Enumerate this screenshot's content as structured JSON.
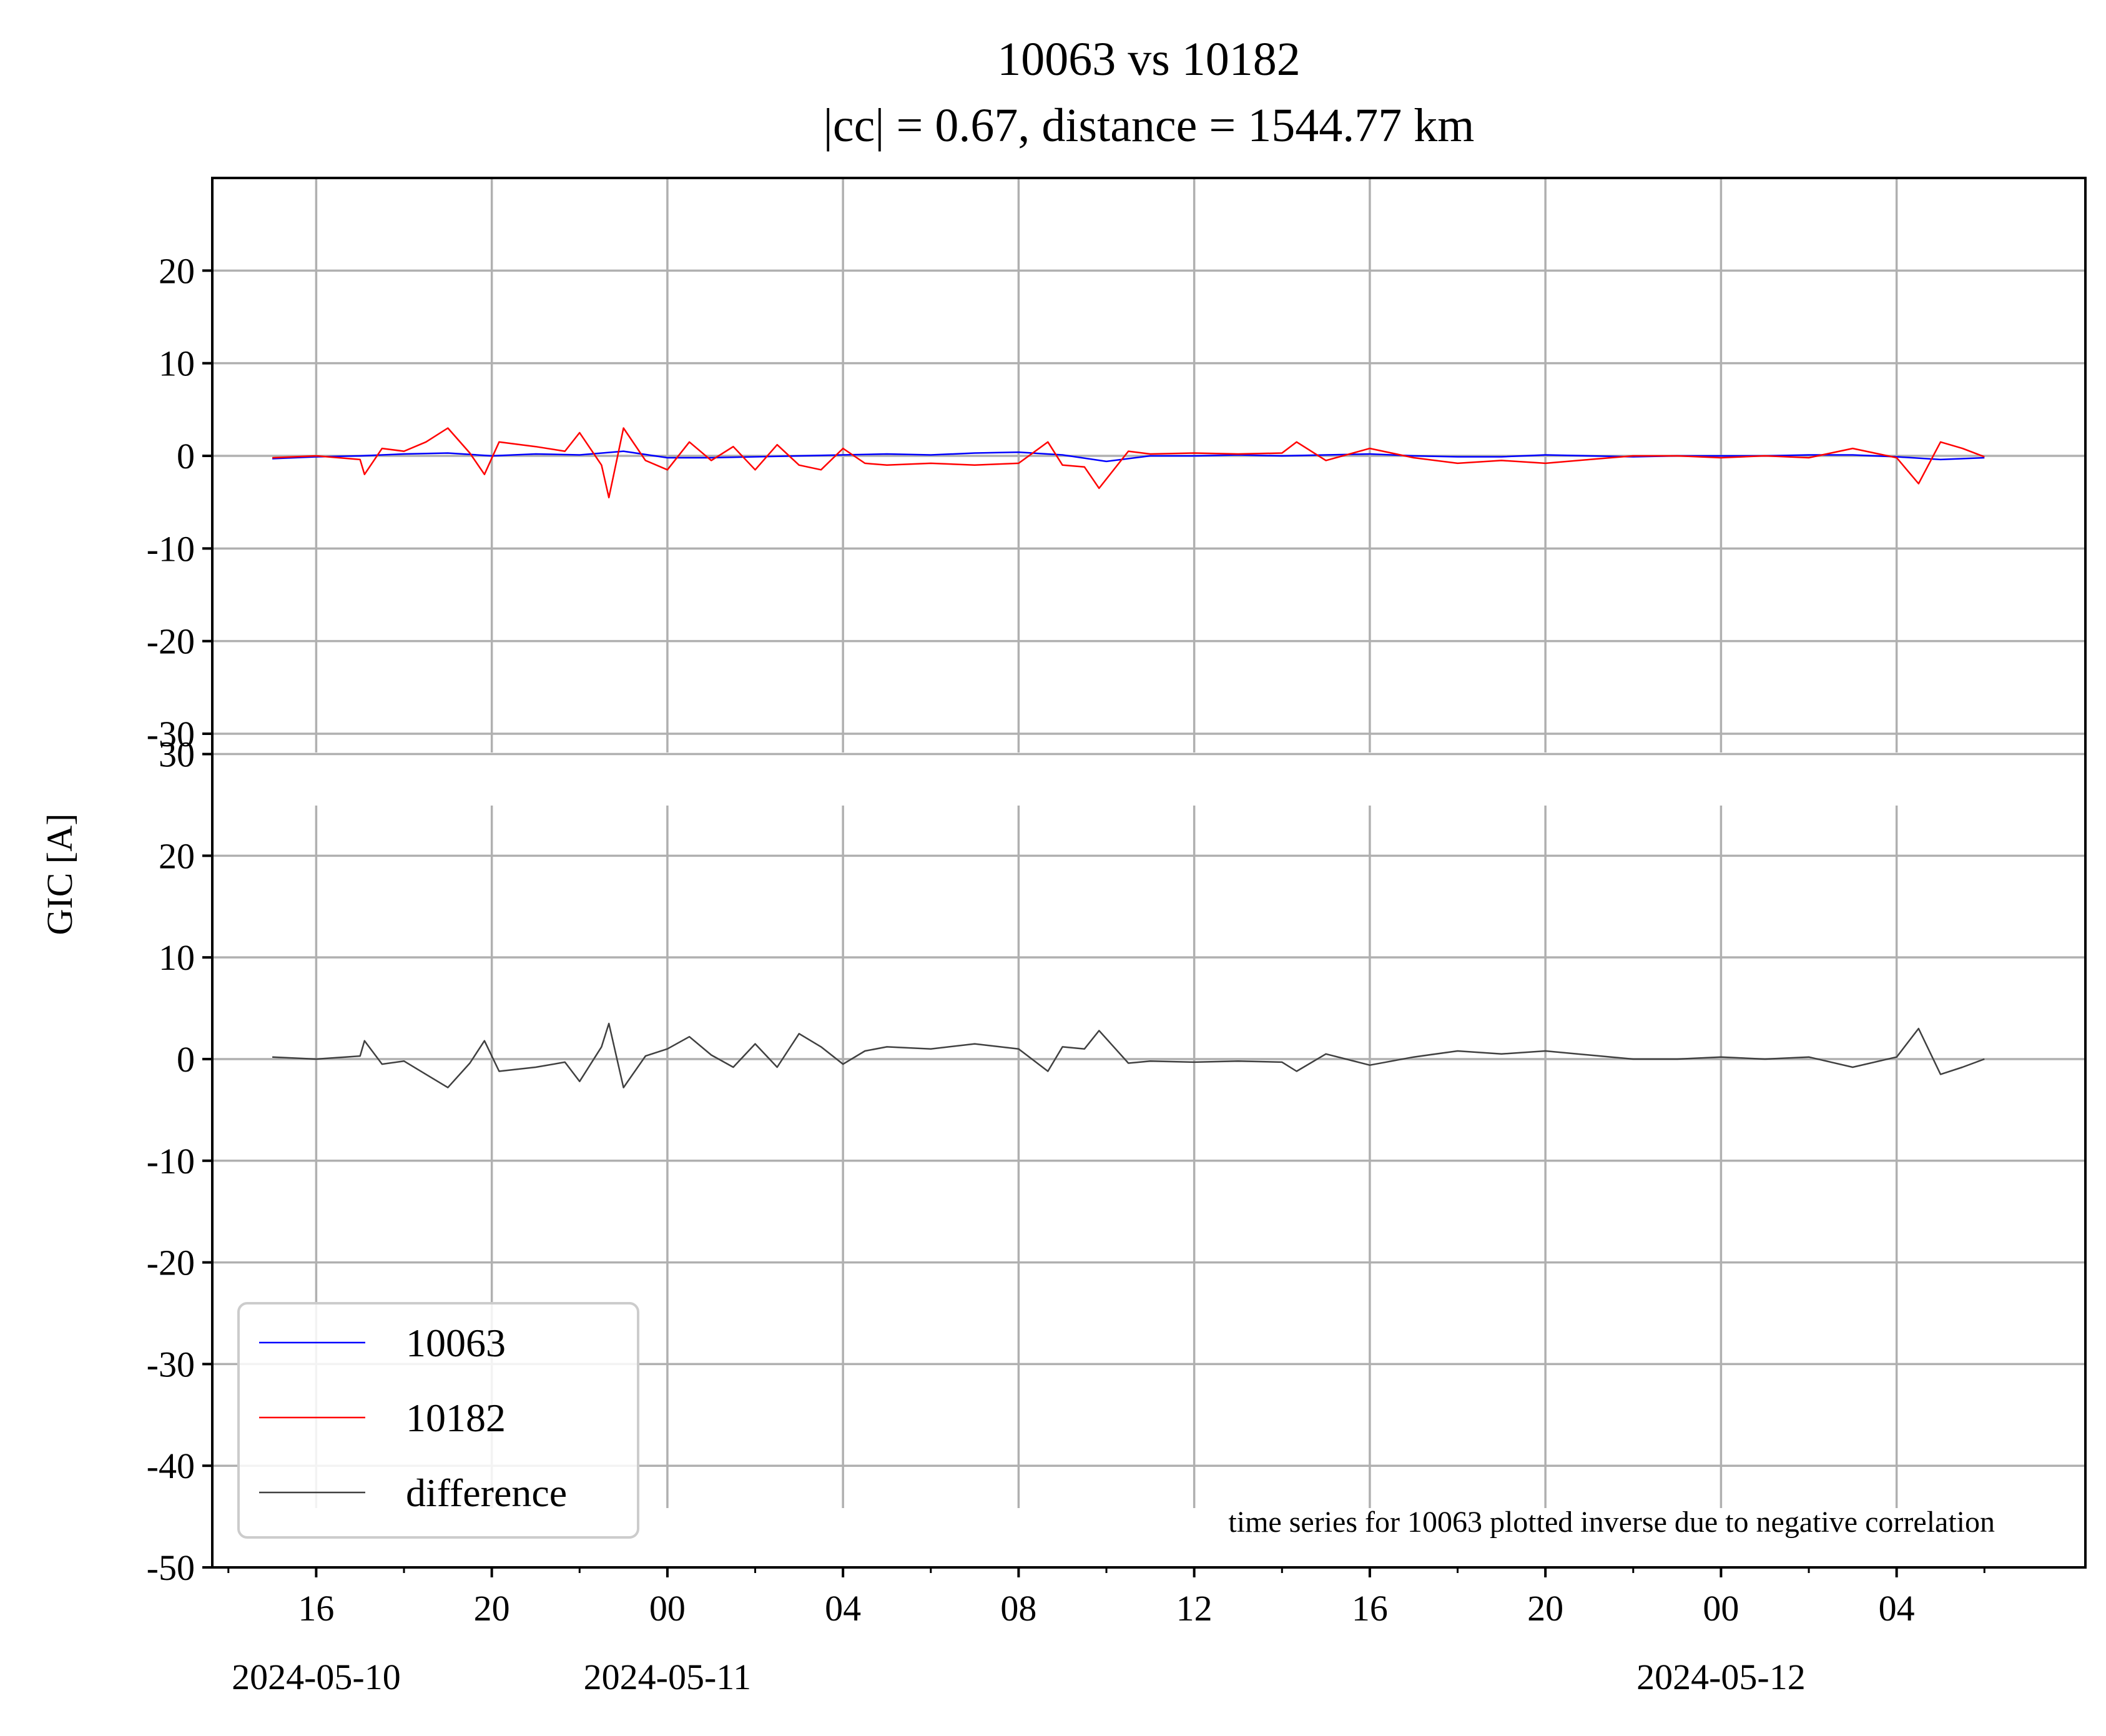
{
  "chart_data": {
    "type": "line",
    "title": "10063 vs 10182",
    "subtitle": "|cc| = 0.67, distance = 1544.77 km",
    "ylabel": "GIC [A]",
    "annotation": "time series for 10063 plotted inverse due to negative correlation",
    "x_range": [
      "2024-05-10T13:38",
      "2024-05-12T08:18"
    ],
    "x_ticks": [
      {
        "time": "2024-05-10T16:00",
        "label": "16",
        "date": "2024-05-10"
      },
      {
        "time": "2024-05-10T20:00",
        "label": "20",
        "date": ""
      },
      {
        "time": "2024-05-11T00:00",
        "label": "00",
        "date": "2024-05-11"
      },
      {
        "time": "2024-05-11T04:00",
        "label": "04",
        "date": ""
      },
      {
        "time": "2024-05-11T08:00",
        "label": "08",
        "date": ""
      },
      {
        "time": "2024-05-11T12:00",
        "label": "12",
        "date": ""
      },
      {
        "time": "2024-05-11T16:00",
        "label": "16",
        "date": ""
      },
      {
        "time": "2024-05-11T20:00",
        "label": "20",
        "date": ""
      },
      {
        "time": "2024-05-12T00:00",
        "label": "00",
        "date": "2024-05-12"
      },
      {
        "time": "2024-05-12T04:00",
        "label": "04",
        "date": ""
      }
    ],
    "top_panel": {
      "ylim": [
        -30,
        30
      ],
      "y_ticks": [
        {
          "value": 20,
          "label": "20"
        },
        {
          "value": 10,
          "label": "10"
        },
        {
          "value": 0,
          "label": "0"
        },
        {
          "value": -10,
          "label": "-10"
        },
        {
          "value": -20,
          "label": "-20"
        },
        {
          "value": -30,
          "label": "-30"
        }
      ],
      "series": [
        {
          "name": "10063",
          "color": "#0000ff",
          "points": [
            [
              "2024-05-10T15:00",
              -0.3
            ],
            [
              "2024-05-10T16:00",
              -0.1
            ],
            [
              "2024-05-10T17:00",
              0.0
            ],
            [
              "2024-05-10T18:00",
              0.2
            ],
            [
              "2024-05-10T19:00",
              0.3
            ],
            [
              "2024-05-10T20:00",
              0.0
            ],
            [
              "2024-05-10T21:00",
              0.2
            ],
            [
              "2024-05-10T22:00",
              0.1
            ],
            [
              "2024-05-10T23:00",
              0.5
            ],
            [
              "2024-05-11T00:00",
              -0.2
            ],
            [
              "2024-05-11T01:00",
              -0.2
            ],
            [
              "2024-05-11T02:00",
              -0.1
            ],
            [
              "2024-05-11T03:00",
              0.0
            ],
            [
              "2024-05-11T04:00",
              0.1
            ],
            [
              "2024-05-11T05:00",
              0.2
            ],
            [
              "2024-05-11T06:00",
              0.1
            ],
            [
              "2024-05-11T07:00",
              0.3
            ],
            [
              "2024-05-11T08:00",
              0.4
            ],
            [
              "2024-05-11T09:00",
              0.1
            ],
            [
              "2024-05-11T10:00",
              -0.6
            ],
            [
              "2024-05-11T11:00",
              0.0
            ],
            [
              "2024-05-11T12:00",
              0.0
            ],
            [
              "2024-05-11T13:00",
              0.1
            ],
            [
              "2024-05-11T14:00",
              0.0
            ],
            [
              "2024-05-11T15:00",
              0.1
            ],
            [
              "2024-05-11T16:00",
              0.2
            ],
            [
              "2024-05-11T17:00",
              0.0
            ],
            [
              "2024-05-11T18:00",
              -0.1
            ],
            [
              "2024-05-11T19:00",
              -0.1
            ],
            [
              "2024-05-11T20:00",
              0.1
            ],
            [
              "2024-05-11T21:00",
              0.0
            ],
            [
              "2024-05-11T22:00",
              -0.1
            ],
            [
              "2024-05-11T23:00",
              0.0
            ],
            [
              "2024-05-12T00:00",
              0.0
            ],
            [
              "2024-05-12T01:00",
              0.0
            ],
            [
              "2024-05-12T02:00",
              0.1
            ],
            [
              "2024-05-12T03:00",
              0.1
            ],
            [
              "2024-05-12T04:00",
              -0.1
            ],
            [
              "2024-05-12T05:00",
              -0.4
            ],
            [
              "2024-05-12T06:00",
              -0.2
            ]
          ]
        },
        {
          "name": "10182",
          "color": "#ff0000",
          "points": [
            [
              "2024-05-10T15:00",
              -0.2
            ],
            [
              "2024-05-10T16:00",
              0.0
            ],
            [
              "2024-05-10T17:00",
              -0.4
            ],
            [
              "2024-05-10T17:06",
              -2.0
            ],
            [
              "2024-05-10T17:30",
              0.8
            ],
            [
              "2024-05-10T18:00",
              0.5
            ],
            [
              "2024-05-10T18:30",
              1.5
            ],
            [
              "2024-05-10T19:00",
              3.0
            ],
            [
              "2024-05-10T19:30",
              0.3
            ],
            [
              "2024-05-10T19:50",
              -2.0
            ],
            [
              "2024-05-10T20:10",
              1.5
            ],
            [
              "2024-05-10T21:00",
              1.0
            ],
            [
              "2024-05-10T21:40",
              0.5
            ],
            [
              "2024-05-10T22:00",
              2.5
            ],
            [
              "2024-05-10T22:30",
              -1.0
            ],
            [
              "2024-05-10T22:40",
              -4.5
            ],
            [
              "2024-05-10T23:00",
              3.0
            ],
            [
              "2024-05-10T23:30",
              -0.5
            ],
            [
              "2024-05-11T00:00",
              -1.5
            ],
            [
              "2024-05-11T00:30",
              1.5
            ],
            [
              "2024-05-11T01:00",
              -0.5
            ],
            [
              "2024-05-11T01:30",
              1.0
            ],
            [
              "2024-05-11T02:00",
              -1.5
            ],
            [
              "2024-05-11T02:30",
              1.2
            ],
            [
              "2024-05-11T03:00",
              -1.0
            ],
            [
              "2024-05-11T03:30",
              -1.5
            ],
            [
              "2024-05-11T04:00",
              0.8
            ],
            [
              "2024-05-11T04:30",
              -0.8
            ],
            [
              "2024-05-11T05:00",
              -1.0
            ],
            [
              "2024-05-11T06:00",
              -0.8
            ],
            [
              "2024-05-11T07:00",
              -1.0
            ],
            [
              "2024-05-11T08:00",
              -0.8
            ],
            [
              "2024-05-11T08:40",
              1.5
            ],
            [
              "2024-05-11T09:00",
              -1.0
            ],
            [
              "2024-05-11T09:30",
              -1.2
            ],
            [
              "2024-05-11T09:50",
              -3.5
            ],
            [
              "2024-05-11T10:30",
              0.5
            ],
            [
              "2024-05-11T11:00",
              0.2
            ],
            [
              "2024-05-11T12:00",
              0.3
            ],
            [
              "2024-05-11T13:00",
              0.2
            ],
            [
              "2024-05-11T14:00",
              0.3
            ],
            [
              "2024-05-11T14:20",
              1.5
            ],
            [
              "2024-05-11T15:00",
              -0.5
            ],
            [
              "2024-05-11T16:00",
              0.8
            ],
            [
              "2024-05-11T17:00",
              -0.2
            ],
            [
              "2024-05-11T18:00",
              -0.8
            ],
            [
              "2024-05-11T19:00",
              -0.5
            ],
            [
              "2024-05-11T20:00",
              -0.8
            ],
            [
              "2024-05-11T21:00",
              -0.4
            ],
            [
              "2024-05-11T22:00",
              0.0
            ],
            [
              "2024-05-11T23:00",
              0.0
            ],
            [
              "2024-05-12T00:00",
              -0.2
            ],
            [
              "2024-05-12T01:00",
              0.0
            ],
            [
              "2024-05-12T02:00",
              -0.2
            ],
            [
              "2024-05-12T03:00",
              0.8
            ],
            [
              "2024-05-12T04:00",
              -0.2
            ],
            [
              "2024-05-12T04:30",
              -3.0
            ],
            [
              "2024-05-12T05:00",
              1.5
            ],
            [
              "2024-05-12T05:30",
              0.8
            ],
            [
              "2024-05-12T06:00",
              -0.1
            ]
          ]
        }
      ]
    },
    "bottom_panel": {
      "ylim": [
        -50,
        32
      ],
      "y_ticks": [
        {
          "value": 30,
          "label": "30"
        },
        {
          "value": 20,
          "label": "20"
        },
        {
          "value": 10,
          "label": "10"
        },
        {
          "value": 0,
          "label": "0"
        },
        {
          "value": -10,
          "label": "-10"
        },
        {
          "value": -20,
          "label": "-20"
        },
        {
          "value": -30,
          "label": "-30"
        },
        {
          "value": -40,
          "label": "-40"
        },
        {
          "value": -50,
          "label": "-50"
        }
      ],
      "series": [
        {
          "name": "difference",
          "color": "#404040",
          "points": [
            [
              "2024-05-10T15:00",
              0.2
            ],
            [
              "2024-05-10T16:00",
              0.0
            ],
            [
              "2024-05-10T17:00",
              0.3
            ],
            [
              "2024-05-10T17:06",
              1.8
            ],
            [
              "2024-05-10T17:30",
              -0.5
            ],
            [
              "2024-05-10T18:00",
              -0.2
            ],
            [
              "2024-05-10T18:30",
              -1.5
            ],
            [
              "2024-05-10T19:00",
              -2.8
            ],
            [
              "2024-05-10T19:30",
              -0.4
            ],
            [
              "2024-05-10T19:50",
              1.8
            ],
            [
              "2024-05-10T20:10",
              -1.2
            ],
            [
              "2024-05-10T21:00",
              -0.8
            ],
            [
              "2024-05-10T21:40",
              -0.3
            ],
            [
              "2024-05-10T22:00",
              -2.2
            ],
            [
              "2024-05-10T22:30",
              1.2
            ],
            [
              "2024-05-10T22:40",
              3.5
            ],
            [
              "2024-05-10T23:00",
              -2.8
            ],
            [
              "2024-05-10T23:30",
              0.3
            ],
            [
              "2024-05-11T00:00",
              1.0
            ],
            [
              "2024-05-11T00:30",
              2.2
            ],
            [
              "2024-05-11T01:00",
              0.4
            ],
            [
              "2024-05-11T01:30",
              -0.8
            ],
            [
              "2024-05-11T02:00",
              1.5
            ],
            [
              "2024-05-11T02:30",
              -0.8
            ],
            [
              "2024-05-11T03:00",
              2.5
            ],
            [
              "2024-05-11T03:30",
              1.2
            ],
            [
              "2024-05-11T04:00",
              -0.5
            ],
            [
              "2024-05-11T04:30",
              0.8
            ],
            [
              "2024-05-11T05:00",
              1.2
            ],
            [
              "2024-05-11T06:00",
              1.0
            ],
            [
              "2024-05-11T07:00",
              1.5
            ],
            [
              "2024-05-11T08:00",
              1.0
            ],
            [
              "2024-05-11T08:40",
              -1.2
            ],
            [
              "2024-05-11T09:00",
              1.2
            ],
            [
              "2024-05-11T09:30",
              1.0
            ],
            [
              "2024-05-11T09:50",
              2.8
            ],
            [
              "2024-05-11T10:30",
              -0.4
            ],
            [
              "2024-05-11T11:00",
              -0.2
            ],
            [
              "2024-05-11T12:00",
              -0.3
            ],
            [
              "2024-05-11T13:00",
              -0.2
            ],
            [
              "2024-05-11T14:00",
              -0.3
            ],
            [
              "2024-05-11T14:20",
              -1.2
            ],
            [
              "2024-05-11T15:00",
              0.5
            ],
            [
              "2024-05-11T16:00",
              -0.6
            ],
            [
              "2024-05-11T17:00",
              0.2
            ],
            [
              "2024-05-11T18:00",
              0.8
            ],
            [
              "2024-05-11T19:00",
              0.5
            ],
            [
              "2024-05-11T20:00",
              0.8
            ],
            [
              "2024-05-11T21:00",
              0.4
            ],
            [
              "2024-05-11T22:00",
              0.0
            ],
            [
              "2024-05-11T23:00",
              0.0
            ],
            [
              "2024-05-12T00:00",
              0.2
            ],
            [
              "2024-05-12T01:00",
              0.0
            ],
            [
              "2024-05-12T02:00",
              0.2
            ],
            [
              "2024-05-12T03:00",
              -0.8
            ],
            [
              "2024-05-12T04:00",
              0.2
            ],
            [
              "2024-05-12T04:30",
              3.0
            ],
            [
              "2024-05-12T05:00",
              -1.5
            ],
            [
              "2024-05-12T05:30",
              -0.8
            ],
            [
              "2024-05-12T06:00",
              0.0
            ]
          ]
        }
      ]
    },
    "grid": true,
    "legend": {
      "placement": "lower-left",
      "entries": [
        {
          "label": "10063",
          "color": "#0000ff"
        },
        {
          "label": "10182",
          "color": "#ff0000"
        },
        {
          "label": "difference",
          "color": "#404040"
        }
      ]
    }
  }
}
